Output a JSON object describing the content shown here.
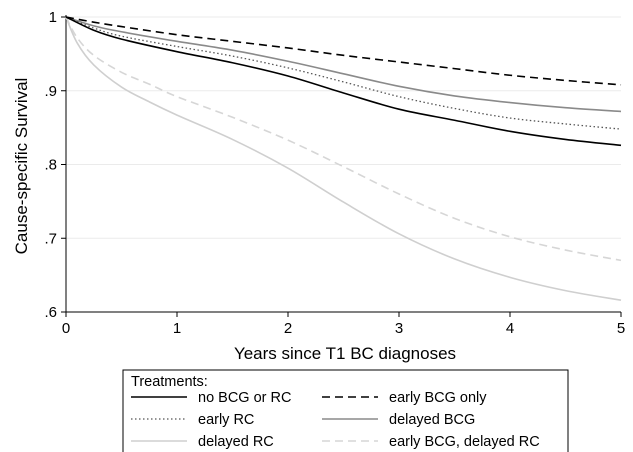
{
  "chart_data": {
    "type": "line",
    "title": "",
    "xlabel": "Years since T1 BC diagnoses",
    "ylabel": "Cause-specific Survival",
    "xlim": [
      0,
      5
    ],
    "ylim": [
      0.6,
      1.0
    ],
    "xticks": [
      0,
      1,
      2,
      3,
      4,
      5
    ],
    "xtick_labels": [
      "0",
      "1",
      "2",
      "3",
      "4",
      "5"
    ],
    "yticks": [
      0.6,
      0.7,
      0.8,
      0.9,
      1.0
    ],
    "ytick_labels": [
      ".6",
      ".7",
      ".8",
      ".9",
      "1"
    ],
    "grid": "horizontal",
    "legend": {
      "title": "Treatments:",
      "placement": "bottom",
      "columns": 2
    },
    "series": [
      {
        "name": "no BCG or RC",
        "color": "#000000",
        "dash": "solid",
        "x": [
          0,
          0.25,
          0.5,
          1,
          1.5,
          2,
          2.5,
          3,
          3.5,
          4,
          4.5,
          5
        ],
        "y": [
          1.0,
          0.982,
          0.97,
          0.953,
          0.938,
          0.92,
          0.897,
          0.875,
          0.86,
          0.845,
          0.834,
          0.826
        ]
      },
      {
        "name": "early BCG only",
        "color": "#000000",
        "dash": "dashed",
        "x": [
          0,
          0.25,
          0.5,
          1,
          1.5,
          2,
          2.5,
          3,
          3.5,
          4,
          4.5,
          5
        ],
        "y": [
          1.0,
          0.993,
          0.987,
          0.976,
          0.967,
          0.958,
          0.948,
          0.939,
          0.93,
          0.921,
          0.914,
          0.908
        ]
      },
      {
        "name": "early RC",
        "color": "#555555",
        "dash": "dotted",
        "x": [
          0,
          0.25,
          0.5,
          1,
          1.5,
          2,
          2.5,
          3,
          3.5,
          4,
          4.5,
          5
        ],
        "y": [
          1.0,
          0.985,
          0.974,
          0.96,
          0.947,
          0.931,
          0.912,
          0.892,
          0.876,
          0.863,
          0.855,
          0.848
        ]
      },
      {
        "name": "delayed BCG",
        "color": "#8a8a8a",
        "dash": "solid",
        "x": [
          0,
          0.25,
          0.5,
          1,
          1.5,
          2,
          2.5,
          3,
          3.5,
          4,
          4.5,
          5
        ],
        "y": [
          1.0,
          0.988,
          0.98,
          0.967,
          0.955,
          0.94,
          0.923,
          0.906,
          0.893,
          0.884,
          0.877,
          0.872
        ]
      },
      {
        "name": "delayed RC",
        "color": "#cfcfcf",
        "dash": "solid",
        "x": [
          0,
          0.1,
          0.25,
          0.5,
          0.75,
          1,
          1.5,
          2,
          2.5,
          3,
          3.5,
          4,
          4.5,
          5
        ],
        "y": [
          1.0,
          0.965,
          0.935,
          0.905,
          0.885,
          0.867,
          0.834,
          0.795,
          0.749,
          0.706,
          0.672,
          0.647,
          0.629,
          0.616
        ]
      },
      {
        "name": "early BCG, delayed RC",
        "color": "#d6d6d6",
        "dash": "dashed",
        "x": [
          0,
          0.1,
          0.25,
          0.5,
          0.75,
          1,
          1.5,
          2,
          2.5,
          3,
          3.5,
          4,
          4.5,
          5
        ],
        "y": [
          1.0,
          0.972,
          0.948,
          0.925,
          0.909,
          0.892,
          0.864,
          0.833,
          0.797,
          0.76,
          0.727,
          0.702,
          0.684,
          0.67
        ]
      }
    ]
  }
}
